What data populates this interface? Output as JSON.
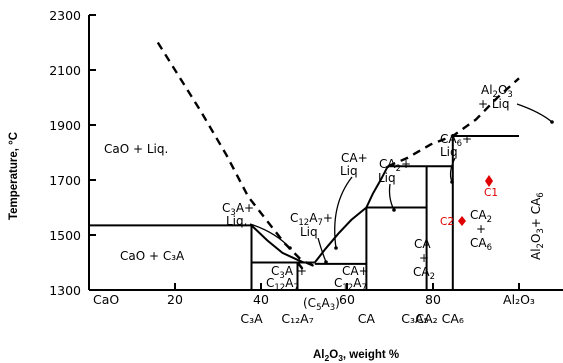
{
  "chart_data": {
    "type": "phase-diagram",
    "xlabel": "Al₂O₃, weight %",
    "ylabel": "Temperature, °C",
    "xlim": [
      0,
      100
    ],
    "ylim": [
      1300,
      2300
    ],
    "y_ticks": [
      "2300",
      "2100",
      "1900",
      "1700",
      "1500",
      "1300"
    ],
    "x_tick_labels": [
      {
        "x": 0,
        "text": "CaO"
      },
      {
        "x": 20,
        "text": "20"
      },
      {
        "x": 40,
        "text": "40"
      },
      {
        "x": 60,
        "text": "60"
      },
      {
        "x": 80,
        "text": "80"
      },
      {
        "x": 100,
        "text": "Al₂O₃"
      }
    ],
    "compounds_below_axis": [
      {
        "x": 37.8,
        "text": "C₃A"
      },
      {
        "x": 48.5,
        "text": "C₁₂A₇"
      },
      {
        "x": 64.5,
        "text": "CA"
      },
      {
        "x": 75.8,
        "text": "C₃A₅"
      },
      {
        "x": 78.5,
        "text": "CA₂"
      },
      {
        "x": 84.6,
        "text": "CA₆"
      }
    ],
    "solid_lines": [
      {
        "name": "C3A vertical",
        "points": [
          [
            37.8,
            1300
          ],
          [
            37.8,
            1535
          ]
        ]
      },
      {
        "name": "C12A7 vertical",
        "points": [
          [
            48.5,
            1300
          ],
          [
            48.5,
            1400
          ]
        ]
      },
      {
        "name": "CA vertical",
        "points": [
          [
            64.5,
            1300
          ],
          [
            64.5,
            1600
          ]
        ]
      },
      {
        "name": "CA2 vertical",
        "points": [
          [
            78.5,
            1300
          ],
          [
            78.5,
            1750
          ]
        ]
      },
      {
        "name": "CA6 vertical",
        "points": [
          [
            84.6,
            1300
          ],
          [
            84.6,
            1860
          ]
        ]
      },
      {
        "name": "eutectic 1535",
        "points": [
          [
            0,
            1535
          ],
          [
            37.8,
            1535
          ]
        ]
      },
      {
        "name": "eutectic 1400",
        "points": [
          [
            37.8,
            1400
          ],
          [
            52.5,
            1400
          ]
        ]
      },
      {
        "name": "eutectic 1395",
        "points": [
          [
            52.5,
            1395
          ],
          [
            64.5,
            1395
          ]
        ]
      },
      {
        "name": "eutectic 1600",
        "points": [
          [
            64.5,
            1600
          ],
          [
            78.5,
            1600
          ]
        ]
      },
      {
        "name": "peritectic 1750",
        "points": [
          [
            69.5,
            1750
          ],
          [
            84.6,
            1750
          ]
        ]
      },
      {
        "name": "peritectic 1860",
        "points": [
          [
            84.6,
            1860
          ],
          [
            100,
            1860
          ]
        ]
      },
      {
        "name": "liquidus C3A-C12A7",
        "points": [
          [
            37.8,
            1535
          ],
          [
            41.5,
            1480
          ],
          [
            45,
            1435
          ],
          [
            48.5,
            1410
          ],
          [
            50,
            1400
          ]
        ]
      },
      {
        "name": "liquidus C12A7-CA",
        "points": [
          [
            52.5,
            1400
          ],
          [
            55,
            1450
          ],
          [
            58,
            1505
          ],
          [
            61,
            1555
          ],
          [
            64.5,
            1600
          ]
        ]
      },
      {
        "name": "liquidus CA-CA2",
        "points": [
          [
            64.5,
            1600
          ],
          [
            66,
            1650
          ],
          [
            68,
            1705
          ],
          [
            69.5,
            1750
          ]
        ]
      }
    ],
    "dashed_lines": [
      {
        "name": "CaO liquidus",
        "points": [
          [
            16,
            2200
          ],
          [
            20,
            2100
          ],
          [
            26,
            1950
          ],
          [
            32,
            1790
          ],
          [
            37,
            1640
          ],
          [
            41.5,
            1550
          ],
          [
            45.5,
            1470
          ],
          [
            49,
            1415
          ],
          [
            50.5,
            1400
          ]
        ]
      },
      {
        "name": "CA2/CA6/Al2O3 liquidus",
        "points": [
          [
            69.5,
            1750
          ],
          [
            74,
            1780
          ],
          [
            79.5,
            1830
          ],
          [
            84.6,
            1860
          ],
          [
            90,
            1920
          ],
          [
            95,
            2000
          ],
          [
            100,
            2070
          ]
        ]
      },
      {
        "name": "C12A7 metastable",
        "points": [
          [
            48.5,
            1400
          ],
          [
            49.5,
            1380
          ],
          [
            50.5,
            1400
          ],
          [
            52,
            1390
          ],
          [
            53.5,
            1400
          ]
        ]
      }
    ],
    "region_labels": [
      {
        "text": "CaO + Liq."
      },
      {
        "text": "CaO + C₃A"
      },
      {
        "text": "C₃A + Liq."
      },
      {
        "text": "C₁₂A₇ + Liq"
      },
      {
        "text": "CA + Liq"
      },
      {
        "text": "CA₂ + Liq"
      },
      {
        "text": "CA₆ + Liq"
      },
      {
        "text": "Al₂O₃ + Liq"
      },
      {
        "text": "C₃A + C₁₂A₇"
      },
      {
        "text": "(C₅A₃)"
      },
      {
        "text": "CA + C₁₂A₇"
      },
      {
        "text": "CA + CA₂"
      },
      {
        "text": "CA₂ + CA₆"
      },
      {
        "text": "Al₂O₃ + CA₆"
      }
    ],
    "annotations": [
      {
        "text": "C1",
        "x": 81.5,
        "y": 1700,
        "color": "#e00000"
      },
      {
        "text": "C2",
        "x": 79.5,
        "y": 1560,
        "color": "#e00000"
      }
    ]
  }
}
